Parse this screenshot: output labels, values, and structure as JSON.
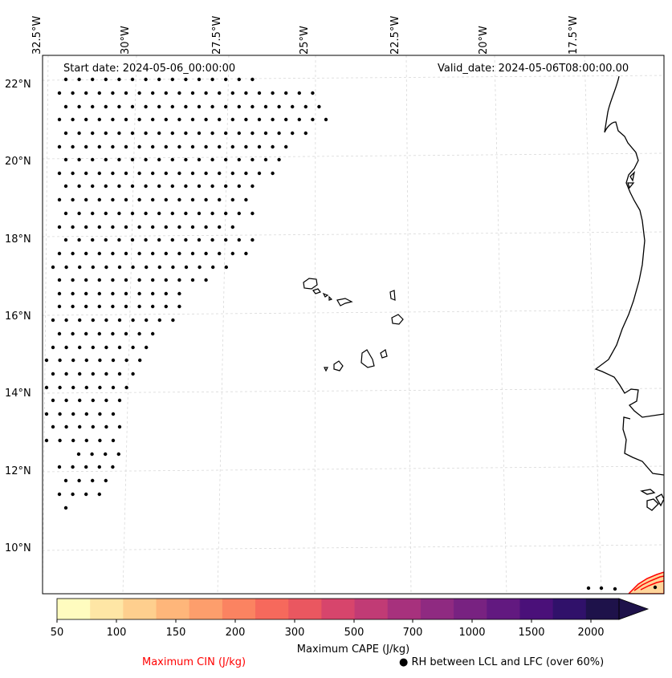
{
  "map": {
    "start_date": "Start date: 2024-05-06_00:00:00",
    "valid_date": "Valid_date: 2024-05-06T08:00:00.00",
    "lon_labels": [
      "32.5°W",
      "30°W",
      "27.5°W",
      "25°W",
      "22.5°W",
      "20°W",
      "17.5°W"
    ],
    "lat_labels": [
      "22°N",
      "20°N",
      "18°N",
      "16°N",
      "14°N",
      "12°N",
      "10°N"
    ],
    "features": [
      "Cape Verde islands",
      "West African coastline (Mauritania, Senegal, Gambia, Guinea-Bissau)",
      "RH dot hatching over western Atlantic",
      "CIN contours near bottom-right corner"
    ]
  },
  "colorbar": {
    "ticks": [
      "50",
      "100",
      "150",
      "200",
      "300",
      "500",
      "700",
      "1000",
      "1500",
      "2000"
    ],
    "colors": [
      "#fffcbf",
      "#fee6a5",
      "#fecf8e",
      "#feb67a",
      "#fd9e6c",
      "#fb8361",
      "#f6695c",
      "#ea5760",
      "#d7456c",
      "#c13b75",
      "#a7317d",
      "#8f2a81",
      "#782281",
      "#621980",
      "#4a1079",
      "#30116a",
      "#1e124a"
    ],
    "title": "Maximum CAPE (J/kg)"
  },
  "legend": {
    "cin_label": "Maximum CIN (J/kg)",
    "cin_color": "#ff0000",
    "rh_label": "● RH between LCL and LFC (over 60%)"
  }
}
